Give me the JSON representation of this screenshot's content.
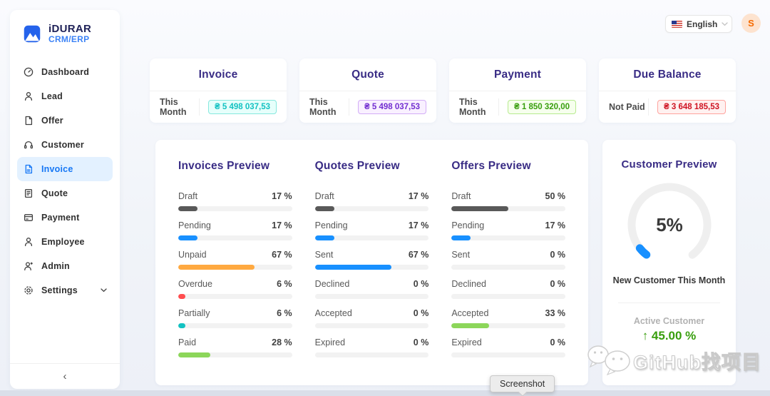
{
  "brand": {
    "name": "iDURAR",
    "subtitle": "CRM/ERP"
  },
  "header": {
    "language_label": "English",
    "avatar_initial": "S"
  },
  "sidebar": {
    "items": [
      {
        "label": "Dashboard"
      },
      {
        "label": "Lead"
      },
      {
        "label": "Offer"
      },
      {
        "label": "Customer"
      },
      {
        "label": "Invoice"
      },
      {
        "label": "Quote"
      },
      {
        "label": "Payment"
      },
      {
        "label": "Employee"
      },
      {
        "label": "Admin"
      },
      {
        "label": "Settings"
      }
    ],
    "active_item": "Invoice",
    "collapse_glyph": "‹"
  },
  "stat_cards": [
    {
      "title": "Invoice",
      "label": "This Month",
      "value": "₴ 5 498 037,53",
      "text_color": "#13c2c2",
      "bg_color": "#e6fffb",
      "border_color": "#87e8de"
    },
    {
      "title": "Quote",
      "label": "This Month",
      "value": "₴ 5 498 037,53",
      "text_color": "#722ed1",
      "bg_color": "#f9f0ff",
      "border_color": "#d3adf7"
    },
    {
      "title": "Payment",
      "label": "This Month",
      "value": "₴ 1 850 320,00",
      "text_color": "#389e0d",
      "bg_color": "#f6ffed",
      "border_color": "#b7eb8f"
    },
    {
      "title": "Due Balance",
      "label": "Not Paid",
      "value": "₴ 3 648 185,53",
      "text_color": "#cf1322",
      "bg_color": "#fff1f0",
      "border_color": "#ffa39e"
    }
  ],
  "previews": [
    {
      "title": "Invoices Preview",
      "rows": [
        {
          "label": "Draft",
          "percent": 17,
          "percent_label": "17 %",
          "color": "#595959"
        },
        {
          "label": "Pending",
          "percent": 17,
          "percent_label": "17 %",
          "color": "#1890ff"
        },
        {
          "label": "Unpaid",
          "percent": 67,
          "percent_label": "67 %",
          "color": "#ffa940"
        },
        {
          "label": "Overdue",
          "percent": 6,
          "percent_label": "6 %",
          "color": "#ff4d4f"
        },
        {
          "label": "Partially",
          "percent": 6,
          "percent_label": "6 %",
          "color": "#13c2c2"
        },
        {
          "label": "Paid",
          "percent": 28,
          "percent_label": "28 %",
          "color": "#8cd65a"
        }
      ]
    },
    {
      "title": "Quotes Preview",
      "rows": [
        {
          "label": "Draft",
          "percent": 17,
          "percent_label": "17 %",
          "color": "#595959"
        },
        {
          "label": "Pending",
          "percent": 17,
          "percent_label": "17 %",
          "color": "#1890ff"
        },
        {
          "label": "Sent",
          "percent": 67,
          "percent_label": "67 %",
          "color": "#1890ff"
        },
        {
          "label": "Declined",
          "percent": 0,
          "percent_label": "0 %",
          "color": "#ff4d4f"
        },
        {
          "label": "Accepted",
          "percent": 0,
          "percent_label": "0 %",
          "color": "#8cd65a"
        },
        {
          "label": "Expired",
          "percent": 0,
          "percent_label": "0 %",
          "color": "#ffa940"
        }
      ]
    },
    {
      "title": "Offers Preview",
      "rows": [
        {
          "label": "Draft",
          "percent": 50,
          "percent_label": "50 %",
          "color": "#595959"
        },
        {
          "label": "Pending",
          "percent": 17,
          "percent_label": "17 %",
          "color": "#1890ff"
        },
        {
          "label": "Sent",
          "percent": 0,
          "percent_label": "0 %",
          "color": "#1890ff"
        },
        {
          "label": "Declined",
          "percent": 0,
          "percent_label": "0 %",
          "color": "#ff4d4f"
        },
        {
          "label": "Accepted",
          "percent": 33,
          "percent_label": "33 %",
          "color": "#8cd65a"
        },
        {
          "label": "Expired",
          "percent": 0,
          "percent_label": "0 %",
          "color": "#ffa940"
        }
      ]
    }
  ],
  "customer_preview": {
    "title": "Customer Preview",
    "gauge_percent": 5,
    "gauge_label": "5%",
    "gauge_color": "#1890ff",
    "caption": "New Customer This Month",
    "active_label": "Active Customer",
    "active_trend_glyph": "↑",
    "active_value": "45.00 %",
    "trend_color": "#389e0d"
  },
  "tooltip": {
    "label": "Screenshot"
  },
  "watermark": {
    "text": "GitHub找项目"
  }
}
